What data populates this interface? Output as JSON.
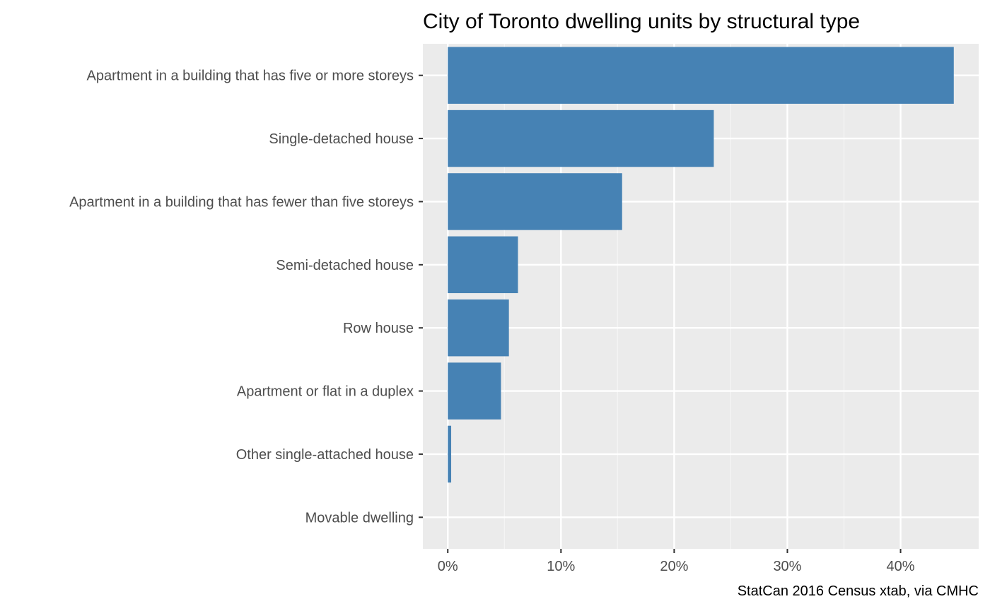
{
  "chart_data": {
    "type": "bar",
    "orientation": "horizontal",
    "title": "City of Toronto dwelling units by structural type",
    "caption": "StatCan 2016 Census xtab, via CMHC",
    "xlabel": "",
    "ylabel": "",
    "categories": [
      "Apartment in a building that has five or more storeys",
      "Single-detached house",
      "Apartment in a building that has fewer than five storeys",
      "Semi-detached house",
      "Row house",
      "Apartment or flat in a duplex",
      "Other single-attached house",
      "Movable dwelling"
    ],
    "values": [
      44.7,
      23.5,
      15.4,
      6.2,
      5.4,
      4.7,
      0.3,
      0.0
    ],
    "xlim": [
      -2.2,
      46.9
    ],
    "x_ticks": [
      0,
      10,
      20,
      30,
      40
    ],
    "x_tick_labels": [
      "0%",
      "10%",
      "20%",
      "30%",
      "40%"
    ],
    "grid": true,
    "colors": {
      "bar": "#4682b4",
      "panel": "#ebebeb",
      "grid_major": "#ffffff",
      "grid_minor": "#f5f5f5"
    }
  }
}
